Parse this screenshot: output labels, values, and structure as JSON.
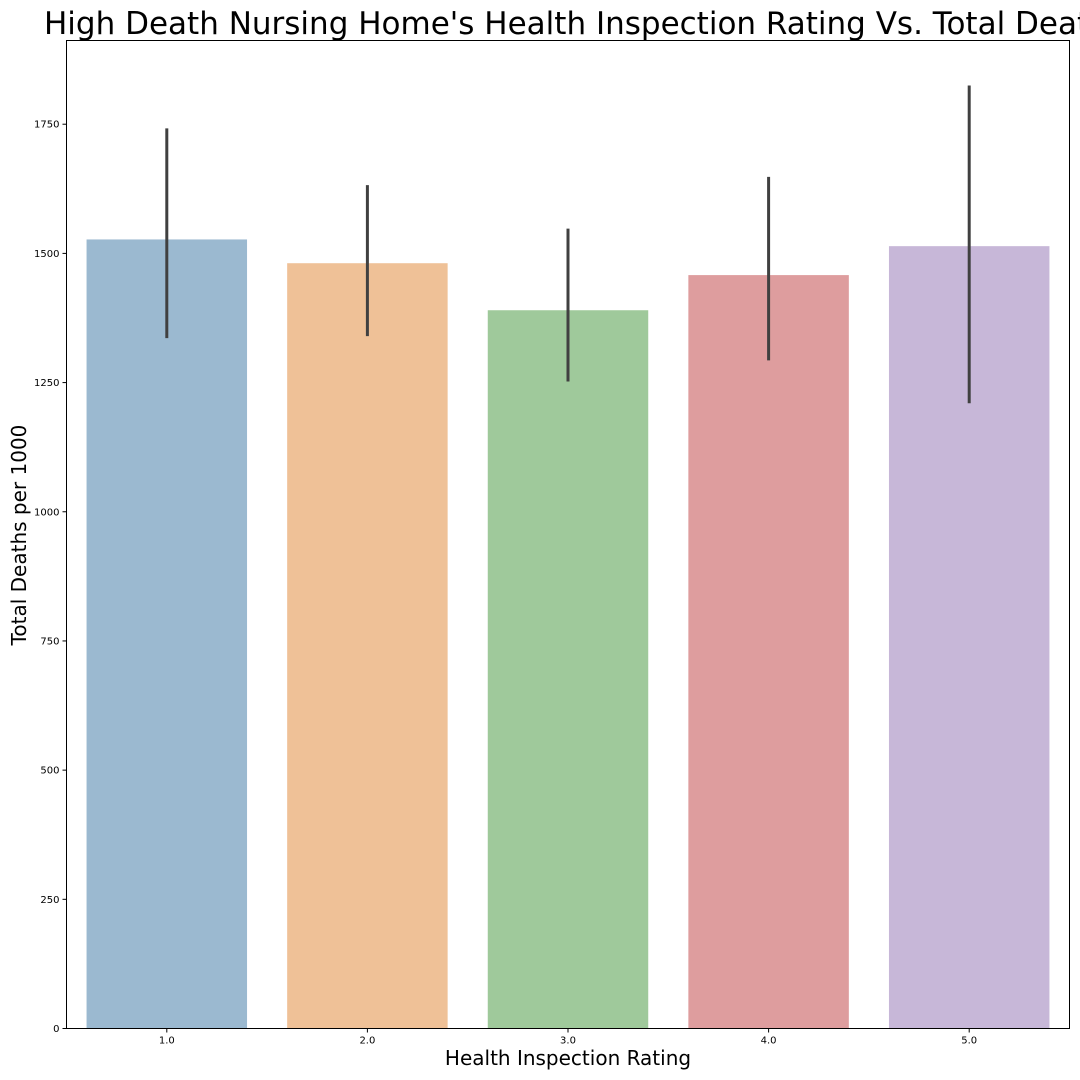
{
  "chart_data": {
    "type": "bar",
    "title": "High Death Nursing Home's Health Inspection Rating Vs. Total Deaths",
    "xlabel": "Health Inspection Rating",
    "ylabel": "Total Deaths per 1000",
    "categories": [
      "1.0",
      "2.0",
      "3.0",
      "4.0",
      "5.0"
    ],
    "values": [
      1527,
      1481,
      1390,
      1458,
      1514
    ],
    "error_low": [
      1336,
      1340,
      1252,
      1293,
      1210
    ],
    "error_high": [
      1742,
      1632,
      1548,
      1648,
      1825
    ],
    "colors": [
      "#9bb9d0",
      "#efc197",
      "#9fc99b",
      "#de9d9e",
      "#c7b7d8"
    ],
    "error_color": "#404040",
    "yticks": [
      0,
      250,
      500,
      750,
      1000,
      1250,
      1500,
      1750
    ],
    "ylim": [
      0,
      1912
    ],
    "grid": false,
    "legend": "none"
  }
}
